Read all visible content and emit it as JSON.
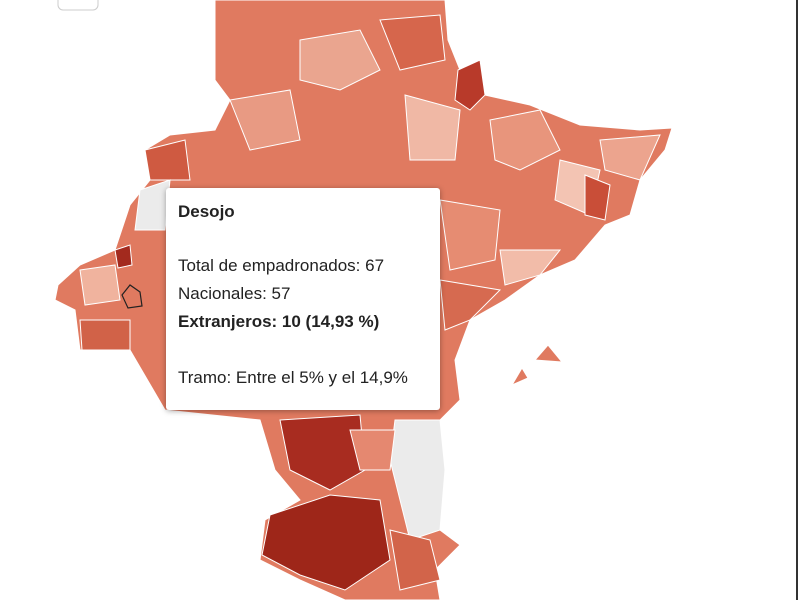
{
  "tooltip": {
    "title": "Desojo",
    "lines": [
      "Total de empadronados: 67",
      "Nacionales: 57",
      "Extranjeros: 10 (14,93 %)",
      "Tramo: Entre el 5% y el 14,9%"
    ]
  }
}
